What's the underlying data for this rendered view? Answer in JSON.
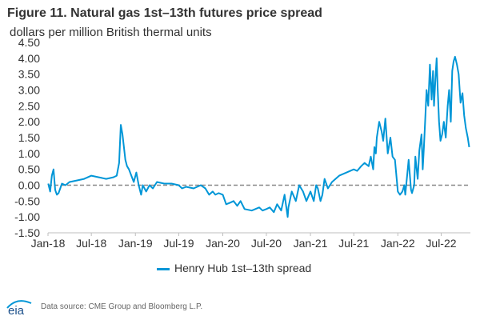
{
  "title": "Figure 11. Natural gas 1st–13th futures price spread",
  "units": "dollars per million British thermal units",
  "source": "Data source: CME Group and Bloomberg L.P.",
  "logo_text": "eia",
  "colors": {
    "series": "#0096d7",
    "zero_line": "#888888",
    "axis_text": "#333333"
  },
  "chart_data": {
    "type": "line",
    "title": "Figure 11. Natural gas 1st–13th futures price spread",
    "ylabel": "dollars per million British thermal units",
    "xlabel": "",
    "x_ticks": [
      "Jan-18",
      "Jul-18",
      "Jan-19",
      "Jul-19",
      "Jan-20",
      "Jul-20",
      "Jan-21",
      "Jul-21",
      "Jan-22",
      "Jul-22"
    ],
    "y_ticks": [
      "4.50",
      "4.00",
      "3.50",
      "3.00",
      "2.50",
      "2.00",
      "1.50",
      "1.00",
      "0.50",
      "0.00",
      "-0.50",
      "-1.00",
      "-1.50"
    ],
    "xlim": [
      "2018-01-01",
      "2022-10-31"
    ],
    "ylim": [
      -1.5,
      4.5
    ],
    "zero_line": "dashed",
    "grid": false,
    "legend": "bottom-center",
    "series": [
      {
        "name": "Henry Hub 1st–13th spread",
        "color": "#0096d7",
        "x": [
          "2018-01-02",
          "2018-01-10",
          "2018-01-17",
          "2018-01-24",
          "2018-01-31",
          "2018-02-07",
          "2018-02-14",
          "2018-02-21",
          "2018-02-28",
          "2018-03-15",
          "2018-04-01",
          "2018-05-01",
          "2018-06-01",
          "2018-07-01",
          "2018-08-01",
          "2018-09-01",
          "2018-10-01",
          "2018-10-15",
          "2018-10-25",
          "2018-11-01",
          "2018-11-08",
          "2018-11-14",
          "2018-11-20",
          "2018-11-27",
          "2018-12-05",
          "2018-12-15",
          "2018-12-25",
          "2019-01-05",
          "2019-01-15",
          "2019-01-25",
          "2019-02-01",
          "2019-02-15",
          "2019-03-01",
          "2019-03-15",
          "2019-04-01",
          "2019-05-01",
          "2019-06-01",
          "2019-07-01",
          "2019-07-15",
          "2019-08-01",
          "2019-09-01",
          "2019-10-01",
          "2019-10-20",
          "2019-11-05",
          "2019-11-20",
          "2019-12-01",
          "2019-12-15",
          "2020-01-01",
          "2020-01-15",
          "2020-02-01",
          "2020-02-15",
          "2020-03-01",
          "2020-03-15",
          "2020-04-01",
          "2020-05-01",
          "2020-06-01",
          "2020-06-15",
          "2020-07-01",
          "2020-07-15",
          "2020-08-01",
          "2020-08-15",
          "2020-09-01",
          "2020-09-15",
          "2020-09-28",
          "2020-10-01",
          "2020-10-15",
          "2020-11-01",
          "2020-11-15",
          "2020-12-01",
          "2020-12-15",
          "2021-01-01",
          "2021-01-15",
          "2021-01-25",
          "2021-02-01",
          "2021-02-12",
          "2021-02-20",
          "2021-03-01",
          "2021-03-15",
          "2021-04-01",
          "2021-05-01",
          "2021-06-01",
          "2021-07-01",
          "2021-07-15",
          "2021-08-01",
          "2021-08-15",
          "2021-09-01",
          "2021-09-10",
          "2021-09-20",
          "2021-09-25",
          "2021-10-01",
          "2021-10-05",
          "2021-10-15",
          "2021-10-25",
          "2021-11-01",
          "2021-11-10",
          "2021-11-20",
          "2021-12-01",
          "2021-12-10",
          "2021-12-20",
          "2022-01-01",
          "2022-01-10",
          "2022-01-20",
          "2022-01-28",
          "2022-02-01",
          "2022-02-10",
          "2022-02-15",
          "2022-02-25",
          "2022-03-01",
          "2022-03-10",
          "2022-03-15",
          "2022-03-25",
          "2022-04-01",
          "2022-04-10",
          "2022-04-15",
          "2022-04-20",
          "2022-04-25",
          "2022-05-01",
          "2022-05-08",
          "2022-05-15",
          "2022-05-22",
          "2022-05-28",
          "2022-06-01",
          "2022-06-08",
          "2022-06-12",
          "2022-06-16",
          "2022-06-22",
          "2022-06-28",
          "2022-07-05",
          "2022-07-12",
          "2022-07-20",
          "2022-07-28",
          "2022-08-03",
          "2022-08-10",
          "2022-08-16",
          "2022-08-22",
          "2022-08-28",
          "2022-09-05",
          "2022-09-12",
          "2022-09-20",
          "2022-09-28",
          "2022-10-05",
          "2022-10-12",
          "2022-10-20",
          "2022-10-26"
        ],
        "values": [
          0.05,
          -0.2,
          0.3,
          0.5,
          -0.15,
          -0.3,
          -0.25,
          -0.1,
          0.05,
          0.0,
          0.1,
          0.15,
          0.2,
          0.3,
          0.25,
          0.2,
          0.25,
          0.3,
          0.7,
          1.9,
          1.6,
          1.2,
          0.8,
          0.6,
          0.5,
          0.3,
          0.1,
          0.4,
          0.0,
          -0.3,
          0.0,
          -0.2,
          0.0,
          -0.1,
          0.1,
          0.05,
          0.05,
          0.0,
          -0.1,
          -0.05,
          -0.1,
          0.0,
          -0.1,
          -0.3,
          -0.2,
          -0.3,
          -0.25,
          -0.3,
          -0.6,
          -0.55,
          -0.5,
          -0.65,
          -0.5,
          -0.75,
          -0.8,
          -0.7,
          -0.8,
          -0.75,
          -0.7,
          -0.85,
          -0.6,
          -0.8,
          -0.3,
          -1.0,
          -0.7,
          -0.2,
          -0.5,
          0.0,
          -0.2,
          -0.5,
          -0.2,
          -0.5,
          0.0,
          -0.1,
          -0.5,
          -0.3,
          0.2,
          -0.1,
          0.1,
          0.3,
          0.4,
          0.5,
          0.45,
          0.6,
          0.7,
          0.6,
          0.9,
          0.5,
          1.2,
          1.0,
          1.5,
          2.0,
          1.7,
          1.4,
          2.1,
          1.0,
          1.5,
          0.9,
          0.8,
          -0.2,
          -0.3,
          -0.2,
          0.0,
          -0.3,
          0.4,
          0.8,
          -0.15,
          -0.25,
          0.0,
          0.9,
          0.2,
          1.1,
          1.6,
          0.5,
          1.2,
          2.0,
          3.0,
          2.5,
          3.8,
          2.7,
          3.6,
          2.5,
          3.5,
          4.0,
          3.1,
          2.0,
          1.4,
          1.6,
          2.0,
          1.5,
          2.5,
          3.0,
          2.0,
          3.6,
          3.9,
          4.05,
          3.8,
          3.5,
          2.6,
          2.9,
          2.2,
          1.8,
          1.5,
          1.2
        ]
      }
    ]
  }
}
